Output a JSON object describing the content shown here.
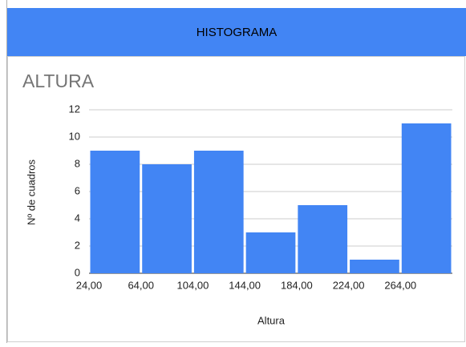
{
  "header": {
    "title": "HISTOGRAMA"
  },
  "chart_data": {
    "type": "histogram",
    "title": "ALTURA",
    "x_label": "Altura",
    "y_label": "Nº de cuadros",
    "bins": [
      24,
      64,
      104,
      144,
      184,
      224,
      264,
      304
    ],
    "values": [
      9,
      8,
      9,
      3,
      5,
      1,
      11
    ],
    "color": "#4285f4",
    "xlim": [
      24,
      304
    ],
    "xticks": [
      {
        "value": 24,
        "label": "24,00"
      },
      {
        "value": 64,
        "label": "64,00"
      },
      {
        "value": 104,
        "label": "104,00"
      },
      {
        "value": 144,
        "label": "144,00"
      },
      {
        "value": 184,
        "label": "184,00"
      },
      {
        "value": 224,
        "label": "224,00"
      },
      {
        "value": 264,
        "label": "264,00"
      }
    ],
    "ylim": [
      0,
      12
    ],
    "yticks": [
      0,
      2,
      4,
      6,
      8,
      10,
      12
    ],
    "grid": true
  }
}
